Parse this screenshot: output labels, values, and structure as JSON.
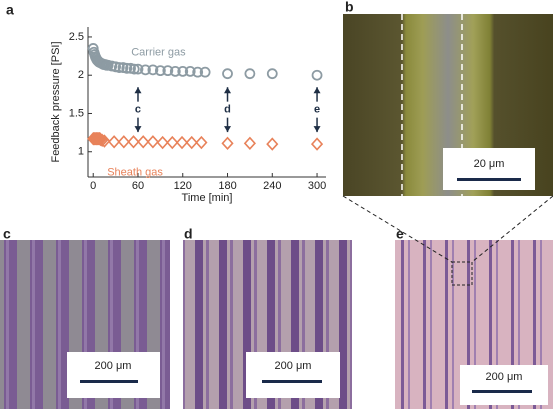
{
  "chart_data": {
    "type": "scatter",
    "xlabel": "Time [min]",
    "ylabel": "Feedback pressure [PSI]",
    "xlim": [
      -7,
      312
    ],
    "xticks": [
      0,
      60,
      120,
      180,
      240,
      300
    ],
    "ylim": [
      0.67,
      2.63
    ],
    "yticks": [
      1,
      1.5,
      2,
      2.5
    ],
    "series": [
      {
        "name": "Carrier gas",
        "color": "#8d9ba3",
        "marker": "circle",
        "x": [
          0,
          1,
          2,
          3,
          4,
          5,
          6,
          7,
          8,
          10,
          12,
          14,
          16,
          18,
          20,
          25,
          30,
          35,
          40,
          45,
          50,
          55,
          60,
          70,
          80,
          90,
          100,
          110,
          120,
          130,
          140,
          150,
          180,
          210,
          240,
          300
        ],
        "values": [
          2.35,
          2.3,
          2.27,
          2.24,
          2.22,
          2.2,
          2.19,
          2.18,
          2.17,
          2.16,
          2.15,
          2.14,
          2.14,
          2.13,
          2.13,
          2.12,
          2.11,
          2.1,
          2.1,
          2.09,
          2.09,
          2.08,
          2.08,
          2.07,
          2.07,
          2.06,
          2.06,
          2.05,
          2.05,
          2.05,
          2.04,
          2.04,
          2.02,
          2.02,
          2.02,
          2.0
        ]
      },
      {
        "name": "Sheath gas",
        "color": "#e8825a",
        "marker": "diamond",
        "x": [
          0,
          1,
          2,
          3,
          4,
          5,
          6,
          7,
          8,
          9,
          10,
          12,
          15,
          28,
          41,
          54,
          67,
          80,
          93,
          106,
          119,
          132,
          145,
          180,
          210,
          240,
          300
        ],
        "values": [
          1.17,
          1.17,
          1.17,
          1.17,
          1.17,
          1.17,
          1.17,
          1.17,
          1.17,
          1.17,
          1.16,
          1.15,
          1.14,
          1.13,
          1.13,
          1.13,
          1.13,
          1.13,
          1.12,
          1.12,
          1.12,
          1.12,
          1.12,
          1.11,
          1.11,
          1.1,
          1.1
        ]
      }
    ],
    "annotations": [
      {
        "text": "c",
        "x": 60
      },
      {
        "text": "d",
        "x": 180
      },
      {
        "text": "e",
        "x": 300
      }
    ]
  },
  "panel_labels": [
    "a",
    "b",
    "c",
    "d",
    "e"
  ],
  "scale_bars": [
    "20 μm",
    "200 μm",
    "200 μm",
    "200 μm"
  ]
}
